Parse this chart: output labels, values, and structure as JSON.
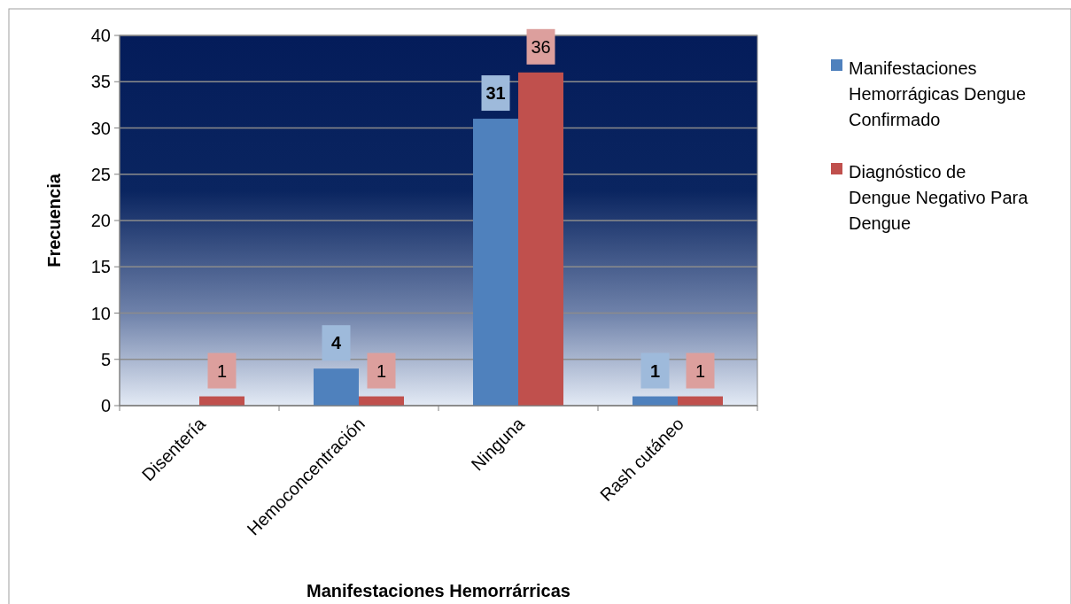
{
  "chart_data": {
    "type": "bar",
    "xlabel": "Manifestaciones Hemorrárricas",
    "ylabel": "Frecuencia",
    "categories": [
      "Disentería",
      "Hemoconcentración",
      "Ninguna",
      "Rash cutáneo"
    ],
    "series": [
      {
        "name": "Manifestaciones Hemorrágicas Dengue Confirmado",
        "color": "#4f81bd",
        "values": [
          null,
          4,
          31,
          1
        ]
      },
      {
        "name": "Diagnóstico de Dengue Negativo Para Dengue",
        "color": "#c0504d",
        "values": [
          1,
          1,
          36,
          1
        ]
      }
    ],
    "ylim": [
      0,
      40
    ],
    "yticks": [
      0,
      5,
      10,
      15,
      20,
      25,
      30,
      35,
      40
    ],
    "grid": "y",
    "legend": "right",
    "data_labels": true
  }
}
